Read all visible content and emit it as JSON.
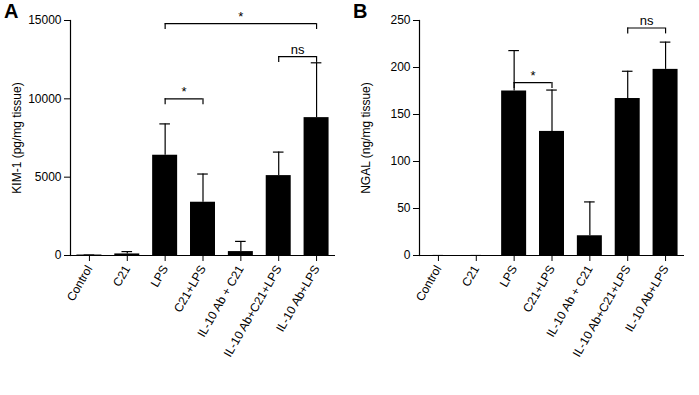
{
  "chart_data": [
    {
      "type": "bar",
      "title": "A",
      "ylabel": "KIM-1 (pg/mg tissue)",
      "categories": [
        "Control",
        "C21",
        "LPS",
        "C21+LPS",
        "IL-10 Ab + C21",
        "IL-10 Ab+C21+LPS",
        "IL-10 Ab+LPS"
      ],
      "values": [
        30,
        100,
        6400,
        3400,
        250,
        5100,
        8800
      ],
      "errors": [
        0,
        150,
        2000,
        1800,
        650,
        1500,
        3500
      ],
      "color": "#000000",
      "ylim": [
        0,
        15000
      ],
      "yticks": [
        0,
        5000,
        10000,
        15000
      ],
      "annotations": [
        {
          "from": "LPS",
          "to": "C21+LPS",
          "y": 10000,
          "label": "*"
        },
        {
          "from": "IL-10 Ab+C21+LPS",
          "to": "IL-10 Ab+LPS",
          "y": 12700,
          "label": "ns"
        },
        {
          "from": "LPS",
          "to": "IL-10 Ab+LPS",
          "y": 14800,
          "label": "*"
        }
      ]
    },
    {
      "type": "bar",
      "title": "B",
      "ylabel": "NGAL (ng/mg tissue)",
      "categories": [
        "Control",
        "C21",
        "LPS",
        "C21+LPS",
        "IL-10 Ab + C21",
        "IL-10 Ab+C21+LPS",
        "IL-10 Ab+LPS"
      ],
      "values": [
        0,
        0,
        175,
        132,
        21,
        167,
        198
      ],
      "errors": [
        0,
        0,
        43,
        44,
        36,
        29,
        29
      ],
      "color": "#000000",
      "ylim": [
        0,
        250
      ],
      "yticks": [
        0,
        50,
        100,
        150,
        200,
        250
      ],
      "annotations": [
        {
          "from": "LPS",
          "to": "C21+LPS",
          "y": 184,
          "label": "*"
        },
        {
          "from": "IL-10 Ab+C21+LPS",
          "to": "IL-10 Ab+LPS",
          "y": 242,
          "label": "ns"
        }
      ]
    }
  ]
}
